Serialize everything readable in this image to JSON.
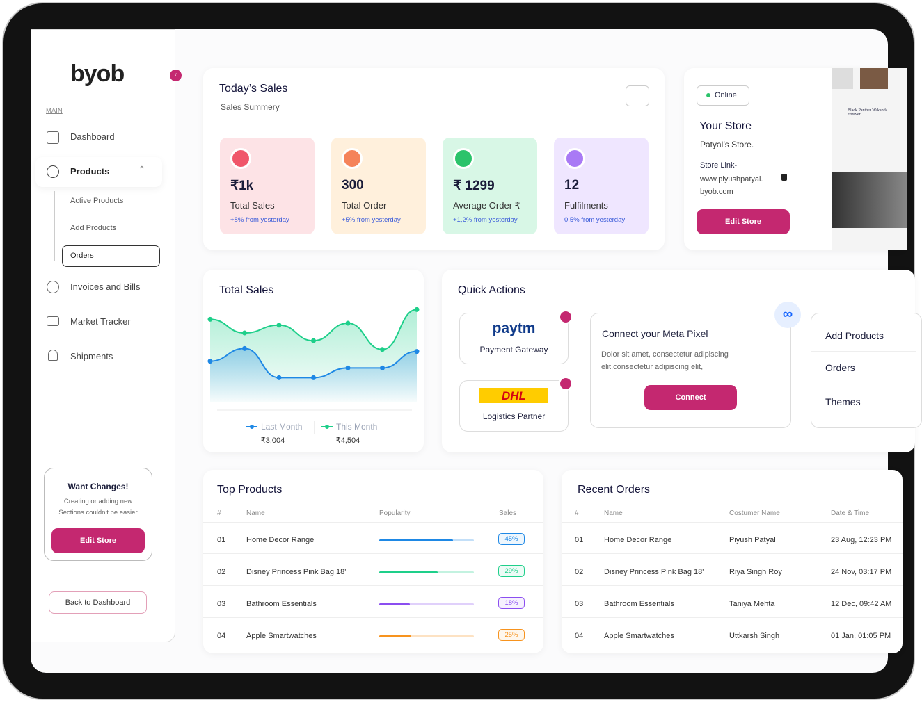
{
  "sidebar": {
    "logo": "byob",
    "section": "MAIN",
    "nav": [
      "Dashboard",
      "Products",
      "Invoices and Bills",
      "Market Tracker",
      "Shipments"
    ],
    "subnav": [
      "Active Products",
      "Add Products",
      "Orders"
    ],
    "promo": {
      "title": "Want Changes!",
      "text": "Creating or adding new Sections couldn't be easier",
      "button": "Edit Store"
    },
    "back": "Back to Dashboard"
  },
  "sales": {
    "title": "Today’s Sales",
    "subtitle": "Sales Summery",
    "cards": [
      {
        "value": "₹1k",
        "label": "Total Sales",
        "change": "+8% from yesterday"
      },
      {
        "value": "300",
        "label": "Total Order",
        "change": "+5% from yesterday"
      },
      {
        "value": "₹ 1299",
        "label": "Average Order ₹",
        "change": "+1,2% from yesterday"
      },
      {
        "value": "12",
        "label": "Fulfilments",
        "change": "0,5% from yesterday"
      }
    ]
  },
  "store": {
    "status": "Online",
    "title": "Your Store",
    "name": "Patyal’s Store.",
    "link_label": "Store Link-",
    "link": "www.piyushpatyal. byob.com",
    "button": "Edit Store",
    "preview": "Black Panther Wakanda Forever"
  },
  "chart_data": {
    "type": "line",
    "title": "Total Sales",
    "ylim": [
      0,
      100
    ],
    "series": [
      {
        "name": "Last Month",
        "color": "#1e88e5",
        "total": "₹3,004",
        "values": [
          36,
          49,
          19,
          19,
          29,
          29,
          46
        ]
      },
      {
        "name": "This Month",
        "color": "#1ecf8a",
        "total": "₹4,504",
        "values": [
          79,
          65,
          73,
          57,
          75,
          48,
          89
        ]
      }
    ]
  },
  "quick_actions": {
    "title": "Quick Actions",
    "partners": [
      {
        "logo": "paytm",
        "label": "Payment Gateway"
      },
      {
        "logo": "DHL",
        "label": "Logistics Partner"
      }
    ],
    "meta": {
      "title": "Connect your Meta Pixel",
      "text": "Dolor sit amet, consectetur adipiscing elit,consectetur adipiscing elit,",
      "button": "Connect"
    },
    "links": [
      "Add Products",
      "Orders",
      "Themes"
    ]
  },
  "top_products": {
    "title": "Top Products",
    "columns": [
      "#",
      "Name",
      "Popularity",
      "Sales"
    ],
    "rows": [
      [
        "01",
        "Home Decor Range",
        "45%"
      ],
      [
        "02",
        "Disney Princess Pink Bag 18'",
        "29%"
      ],
      [
        "03",
        "Bathroom Essentials",
        "18%"
      ],
      [
        "04",
        "Apple Smartwatches",
        "25%"
      ]
    ],
    "popularity": [
      78,
      62,
      32,
      34
    ],
    "colors": [
      "#1e88e5",
      "#1ecf8a",
      "#8b4ef0",
      "#f7931e"
    ]
  },
  "recent_orders": {
    "title": "Recent Orders",
    "columns": [
      "#",
      "Name",
      "Costumer Name",
      "Date & Time"
    ],
    "rows": [
      [
        "01",
        "Home Decor Range",
        "Piyush Patyal",
        "23 Aug, 12:23 PM"
      ],
      [
        "02",
        "Disney Princess Pink Bag 18'",
        "Riya Singh Roy",
        "24 Nov, 03:17 PM"
      ],
      [
        "03",
        "Bathroom Essentials",
        "Taniya Mehta",
        "12 Dec, 09:42 AM"
      ],
      [
        "04",
        "Apple Smartwatches",
        "Uttkarsh Singh",
        "01 Jan, 01:05 PM"
      ]
    ]
  }
}
